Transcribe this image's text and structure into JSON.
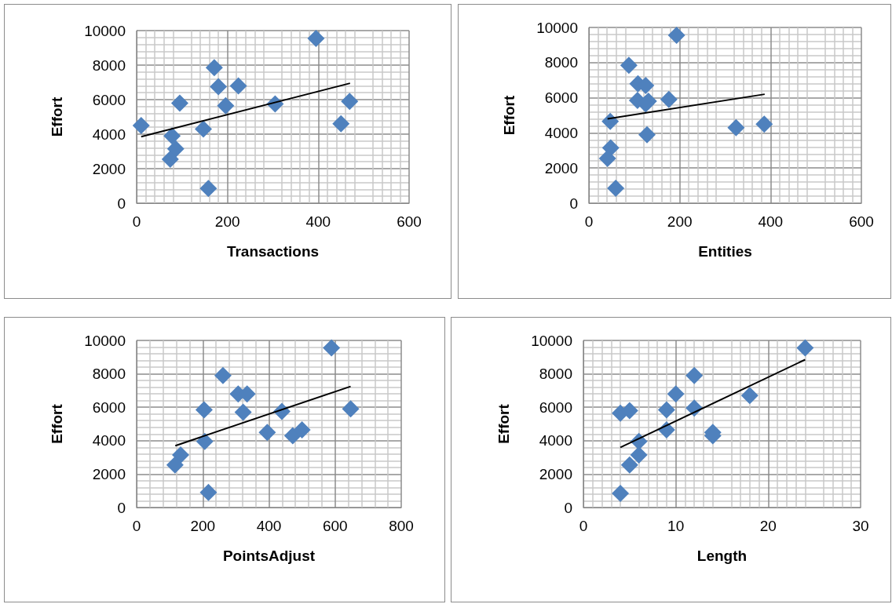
{
  "chart_data": [
    {
      "type": "scatter",
      "xlabel": "Transactions",
      "ylabel": "Effort",
      "xlim": [
        0,
        600
      ],
      "xticks": [
        0,
        200,
        400,
        600
      ],
      "ylim": [
        0,
        10000
      ],
      "yticks": [
        0,
        2000,
        4000,
        6000,
        8000,
        10000
      ],
      "grid": true,
      "series": [
        {
          "color": "#4f81bd",
          "marker": "diamond",
          "x": [
            10,
            78,
            86,
            74,
            95,
            147,
            158,
            171,
            180,
            196,
            224,
            305,
            395,
            450,
            469
          ],
          "values": [
            4500,
            3900,
            3150,
            2550,
            5800,
            4300,
            850,
            7850,
            6750,
            5650,
            6800,
            5750,
            9550,
            4600,
            5900
          ]
        },
        {
          "type": "line",
          "color": "#000000",
          "marker": "none",
          "x": [
            10,
            470
          ],
          "values": [
            3850,
            6950
          ]
        }
      ]
    },
    {
      "type": "scatter",
      "xlabel": "Entities",
      "ylabel": "Effort",
      "xlim": [
        0,
        600
      ],
      "xticks": [
        0,
        200,
        400,
        600
      ],
      "ylim": [
        0,
        10000
      ],
      "yticks": [
        0,
        2000,
        4000,
        6000,
        8000,
        10000
      ],
      "grid": true,
      "series": [
        {
          "color": "#4f81bd",
          "marker": "diamond",
          "x": [
            47,
            48,
            41,
            59,
            88,
            108,
            125,
            107,
            131,
            125,
            176,
            128,
            193,
            324,
            386
          ],
          "values": [
            4650,
            3150,
            2550,
            850,
            7850,
            6800,
            6700,
            5850,
            5800,
            5650,
            5900,
            3900,
            9550,
            4300,
            4500
          ]
        },
        {
          "type": "line",
          "color": "#000000",
          "marker": "none",
          "x": [
            41,
            387
          ],
          "values": [
            4800,
            6200
          ]
        }
      ]
    },
    {
      "type": "scatter",
      "xlabel": "PointsAdjust",
      "ylabel": "Effort",
      "xlim": [
        0,
        800
      ],
      "xticks": [
        0,
        200,
        400,
        600,
        800
      ],
      "ylim": [
        0,
        10000
      ],
      "yticks": [
        0,
        2000,
        4000,
        6000,
        8000,
        10000
      ],
      "grid": true,
      "series": [
        {
          "color": "#4f81bd",
          "marker": "diamond",
          "x": [
            589,
            261,
            307,
            334,
            204,
            322,
            439,
            647,
            395,
            472,
            500,
            206,
            133,
            116,
            217
          ],
          "values": [
            9550,
            7900,
            6800,
            6800,
            5850,
            5700,
            5750,
            5900,
            4500,
            4300,
            4650,
            3950,
            3150,
            2550,
            900
          ]
        },
        {
          "type": "line",
          "color": "#000000",
          "marker": "none",
          "x": [
            117,
            647
          ],
          "values": [
            3700,
            7250
          ]
        }
      ]
    },
    {
      "type": "scatter",
      "xlabel": "Length",
      "ylabel": "Effort",
      "xlim": [
        0,
        30
      ],
      "xticks": [
        0,
        10,
        20,
        30
      ],
      "ylim": [
        0,
        10000
      ],
      "yticks": [
        0,
        2000,
        4000,
        6000,
        8000,
        10000
      ],
      "grid": true,
      "series": [
        {
          "color": "#4f81bd",
          "marker": "diamond",
          "x": [
            4,
            5,
            6,
            6,
            5,
            4,
            9,
            9,
            10,
            12,
            12,
            14,
            14,
            18,
            24
          ],
          "values": [
            5650,
            5800,
            3950,
            3150,
            2550,
            850,
            5850,
            4650,
            6800,
            7900,
            5950,
            4500,
            4300,
            6700,
            9550
          ]
        },
        {
          "type": "line",
          "color": "#000000",
          "marker": "none",
          "x": [
            4,
            24
          ],
          "values": [
            3600,
            8850
          ]
        }
      ]
    }
  ]
}
